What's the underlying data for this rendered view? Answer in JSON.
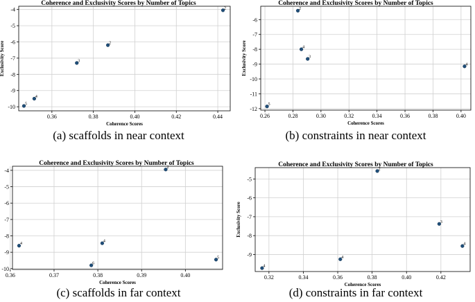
{
  "chart_data": [
    {
      "type": "scatter",
      "title": "Coherence and Exclusivity Scores by Number of Topics",
      "xlabel": "Coherence Scores",
      "ylabel": "Exclusivity Score",
      "caption": "(a) scaffolds in near context",
      "xlim": [
        0.344,
        0.446
      ],
      "ylim": [
        -10.25,
        -3.8
      ],
      "xticks": [
        0.36,
        0.38,
        0.4,
        0.42,
        0.44
      ],
      "xtick_labels": [
        "0.36",
        "0.38",
        "0.40",
        "0.42",
        "0.44"
      ],
      "yticks": [
        -10,
        -9,
        -8,
        -7,
        -6,
        -5,
        -4
      ],
      "ytick_labels": [
        "-10",
        "-9",
        "-8",
        "-7",
        "-6",
        "-5",
        "-4"
      ],
      "grid": true,
      "points": [
        {
          "x": 0.3465,
          "y": -9.95,
          "label": "5"
        },
        {
          "x": 0.3515,
          "y": -9.5,
          "label": "4"
        },
        {
          "x": 0.372,
          "y": -7.3,
          "label": "3"
        },
        {
          "x": 0.387,
          "y": -6.2,
          "label": "2"
        },
        {
          "x": 0.4425,
          "y": -4.05,
          "label": "2"
        }
      ]
    },
    {
      "type": "scatter",
      "title": "Coherence and Exclusivity Scores by Number of Topics",
      "xlabel": "Coherence Scores",
      "ylabel": "Exclusivity Score",
      "caption": "(b) constraints in near context",
      "xlim": [
        0.257,
        0.407
      ],
      "ylim": [
        -12.1,
        -5.1
      ],
      "xticks": [
        0.26,
        0.28,
        0.3,
        0.32,
        0.34,
        0.36,
        0.38,
        0.4
      ],
      "xtick_labels": [
        "0.26",
        "0.28",
        "0.30",
        "0.32",
        "0.34",
        "0.36",
        "0.38",
        "0.40"
      ],
      "yticks": [
        -12,
        -11,
        -10,
        -9,
        -8,
        -7,
        -6
      ],
      "ytick_labels": [
        "-12",
        "-11",
        "-10",
        "-9",
        "-8",
        "-7",
        "-6"
      ],
      "grid": true,
      "points": [
        {
          "x": 0.2615,
          "y": -11.85,
          "label": "5"
        },
        {
          "x": 0.2835,
          "y": -5.4,
          "label": "2"
        },
        {
          "x": 0.286,
          "y": -8.0,
          "label": "4"
        },
        {
          "x": 0.2905,
          "y": -8.65,
          "label": "3"
        },
        {
          "x": 0.4025,
          "y": -9.15,
          "label": "4"
        }
      ]
    },
    {
      "type": "scatter",
      "title": "Coherence and Exclusivity Scores by Number of Topics",
      "xlabel": "Coherence Scores",
      "ylabel": "Exclusivity Score",
      "caption": "(c) scaffolds in far context",
      "xlim": [
        0.3605,
        0.4085
      ],
      "ylim": [
        -10.05,
        -3.75
      ],
      "xticks": [
        0.36,
        0.37,
        0.38,
        0.39,
        0.4
      ],
      "xtick_labels": [
        "0.36",
        "0.37",
        "0.38",
        "0.39",
        "0.40"
      ],
      "yticks": [
        -10,
        -9,
        -8,
        -7,
        -6,
        -5,
        -4
      ],
      "ytick_labels": [
        "-10",
        "-9",
        "-8",
        "-7",
        "-6",
        "-5",
        "-4"
      ],
      "grid": true,
      "points": [
        {
          "x": 0.362,
          "y": -8.6,
          "label": "4"
        },
        {
          "x": 0.3785,
          "y": -9.8,
          "label": "6"
        },
        {
          "x": 0.381,
          "y": -8.45,
          "label": "4"
        },
        {
          "x": 0.3955,
          "y": -3.95,
          "label": "2"
        },
        {
          "x": 0.407,
          "y": -9.45,
          "label": "5"
        }
      ]
    },
    {
      "type": "scatter",
      "title": "Coherence and Exclusivity Scores by Number of Topics",
      "xlabel": "Coherence Scores",
      "ylabel": "Exclusivity Score",
      "caption": "(d) constraints in far context",
      "xlim": [
        0.312,
        0.437
      ],
      "ylim": [
        -9.9,
        -4.4
      ],
      "xticks": [
        0.32,
        0.34,
        0.36,
        0.38,
        0.4,
        0.42
      ],
      "xtick_labels": [
        "0.32",
        "0.34",
        "0.36",
        "0.38",
        "0.40",
        "0.42"
      ],
      "yticks": [
        -9,
        -8,
        -7,
        -6,
        -5
      ],
      "ytick_labels": [
        "-9",
        "-8",
        "-7",
        "-6",
        "-5"
      ],
      "grid": true,
      "points": [
        {
          "x": 0.316,
          "y": -9.72,
          "label": "4"
        },
        {
          "x": 0.3615,
          "y": -9.25,
          "label": "4"
        },
        {
          "x": 0.383,
          "y": -4.58,
          "label": "2"
        },
        {
          "x": 0.419,
          "y": -7.38,
          "label": "3"
        },
        {
          "x": 0.4325,
          "y": -8.55,
          "label": "4"
        }
      ]
    }
  ],
  "colors": {
    "point": "#1f4e79",
    "grid": "#d0d0d0",
    "axis": "#000000"
  }
}
